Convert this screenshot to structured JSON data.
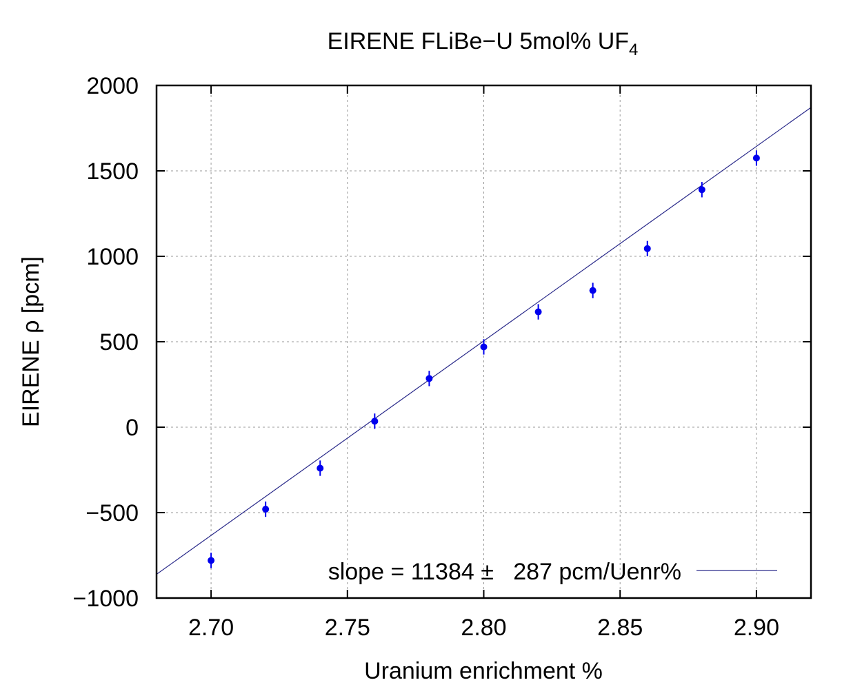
{
  "chart_data": {
    "type": "scatter",
    "title_main": "EIRENE FLiBe−U 5mol% UF",
    "title_sub": "4",
    "xlabel": "Uranium enrichment %",
    "ylabel": "EIRENE ρ [pcm]",
    "xlim": [
      2.68,
      2.92
    ],
    "ylim": [
      -1000,
      2000
    ],
    "x_ticks": [
      2.7,
      2.75,
      2.8,
      2.85,
      2.9
    ],
    "x_tick_labels": [
      "2.70",
      "2.75",
      "2.80",
      "2.85",
      "2.90"
    ],
    "y_ticks": [
      -1000,
      -500,
      0,
      500,
      1000,
      1500,
      2000
    ],
    "y_tick_labels": [
      "−1000",
      "−500",
      "0",
      "500",
      "1000",
      "1500",
      "2000"
    ],
    "grid": true,
    "legend_position": "bottom-right",
    "series": [
      {
        "type": "points-with-yerror",
        "color": "#0000ee",
        "x": [
          2.7,
          2.72,
          2.74,
          2.76,
          2.78,
          2.8,
          2.82,
          2.84,
          2.86,
          2.88,
          2.9
        ],
        "y": [
          -780,
          -480,
          -240,
          35,
          285,
          470,
          675,
          800,
          1045,
          1390,
          1575
        ],
        "yerr": [
          45,
          45,
          45,
          45,
          45,
          45,
          45,
          45,
          45,
          45,
          45
        ]
      },
      {
        "name": "slope = 11384 ±   287 pcm/Uenr%",
        "type": "line",
        "color": "#2a2a8a",
        "slope": 11384,
        "x_ref": 2.8,
        "y_ref": 505
      }
    ]
  }
}
